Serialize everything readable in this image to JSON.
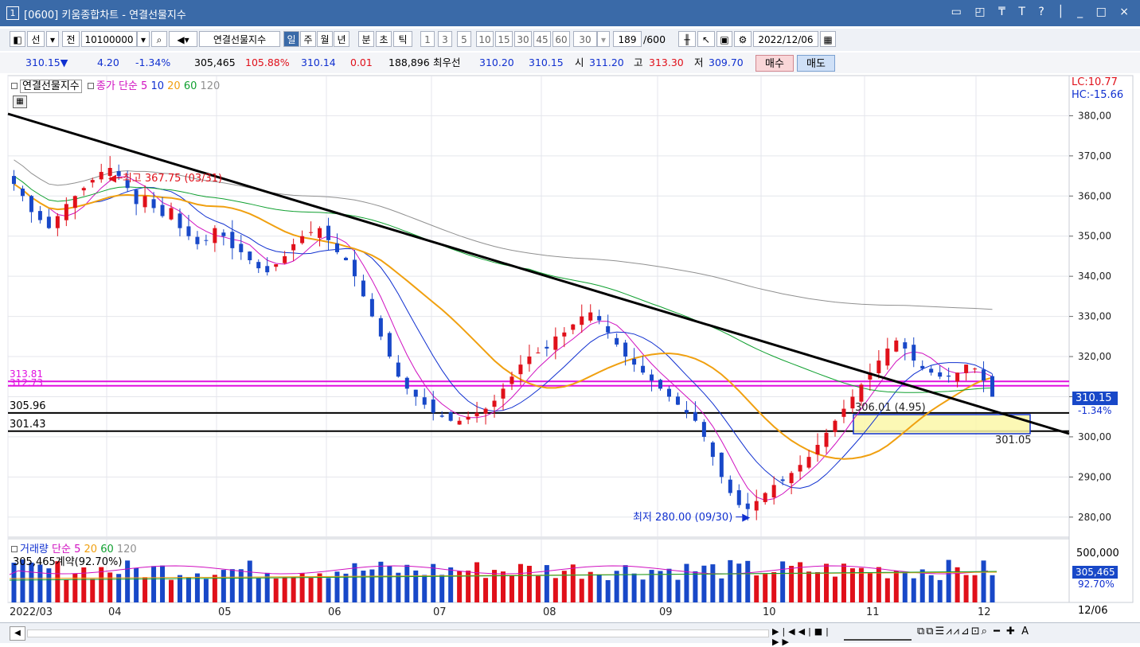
{
  "window": {
    "index": "1",
    "title": "[0600] 키움종합차트 - 연결선물지수",
    "controls": "▭ ◰ ₸ T ? │ _ □ ×"
  },
  "toolbar": {
    "market": "선",
    "prev_label": "전",
    "code": "10100000",
    "name": "연결선물지수",
    "periods": [
      "일",
      "주",
      "월",
      "년",
      "분",
      "초",
      "틱"
    ],
    "selected_period": "일",
    "intervals": [
      "1",
      "3",
      "5",
      "10",
      "15",
      "30",
      "45",
      "60"
    ],
    "interval_value": "30",
    "count": "189",
    "count_max": "/600",
    "date": "2022/12/06"
  },
  "quote": {
    "price": "310.15▼",
    "change": "4.20",
    "change_pct": "-1.34%",
    "volume": "305,465",
    "volume_pct": "105.88%",
    "prev_price": "310.14",
    "prev_change": "0.01",
    "open_interest": "188,896",
    "best_label": "최우선",
    "best_bid": "310.20",
    "best_ask": "310.15",
    "open_label": "시",
    "open": "311.20",
    "high_label": "고",
    "high": "313.30",
    "low_label": "저",
    "low": "309.70",
    "buy_button": "매수",
    "sell_button": "매도"
  },
  "price_panel": {
    "legend_name": "연결선물지수",
    "legend_ma_label": "종가 단순",
    "ma_periods": [
      "5",
      "10",
      "20",
      "60",
      "120"
    ],
    "lc": "LC:10.77",
    "hc": "HC:-15.66",
    "high_annotation": "최고 367.75 (03/31)",
    "low_annotation": "최저 280.00 (09/30)",
    "box_label": "306.01 (4.95)",
    "box_bottom_label": "301.05",
    "level_labels": [
      "313.81",
      "312.73",
      "305.96",
      "301.43"
    ],
    "current_tag": "310.15",
    "current_pct": "-1.34%"
  },
  "volume_panel": {
    "legend_name": "거래량",
    "legend_ma_label": "단순",
    "ma_periods": [
      "5",
      "20",
      "60",
      "120"
    ],
    "subtitle": "305,465계약(92.70%)",
    "axis_label": "500,000",
    "current_tag": "305,465",
    "current_pct": "92.70%"
  },
  "x_labels": [
    "2022/03",
    "04",
    "05",
    "06",
    "07",
    "08",
    "09",
    "10",
    "11",
    "12"
  ],
  "x_end_label": "12/06",
  "colors": {
    "up": "#e0101a",
    "down": "#1848c8",
    "ma5": "#d010c0",
    "ma10": "#1030d0",
    "ma20": "#f0a010",
    "ma60": "#10a030",
    "ma120": "#909090",
    "level_magenta": "#e010e0"
  },
  "chart_data": {
    "type": "candlestick",
    "y_axis_ticks": [
      280,
      290,
      300,
      310,
      320,
      330,
      340,
      350,
      360,
      370,
      380
    ],
    "ylim": [
      275,
      390
    ],
    "x_categories": [
      "2022/03",
      "04",
      "05",
      "06",
      "07",
      "08",
      "09",
      "10",
      "11",
      "12"
    ],
    "series_close_approx": [
      363,
      360,
      356,
      354,
      352,
      355,
      358,
      360,
      362,
      364,
      366,
      367,
      365,
      362,
      358,
      360,
      357,
      355,
      357,
      352,
      350,
      348,
      349,
      352,
      350,
      347,
      346,
      344,
      342,
      341,
      343,
      345,
      348,
      350,
      351,
      352,
      349,
      346,
      344,
      340,
      335,
      330,
      325,
      320,
      315,
      312,
      310,
      308,
      306,
      305,
      304,
      304,
      305,
      306,
      307,
      309,
      312,
      315,
      318,
      320,
      321,
      322,
      325,
      326,
      328,
      330,
      331,
      329,
      326,
      323,
      320,
      318,
      316,
      314,
      312,
      310,
      308,
      306,
      304,
      300,
      295,
      290,
      286,
      283,
      282,
      284,
      286,
      288,
      289,
      291,
      293,
      295,
      298,
      301,
      304,
      307,
      310,
      313,
      316,
      319,
      322,
      324,
      322,
      319,
      317,
      316,
      315,
      315,
      316,
      318,
      317,
      314,
      310
    ],
    "levels": [
      313.81,
      312.73,
      305.96,
      301.43
    ],
    "annotations": [
      "최고 367.75 (03/31)",
      "최저 280.00 (09/30)",
      "306.01 (4.95)",
      "301.05"
    ],
    "last": 310.15
  }
}
